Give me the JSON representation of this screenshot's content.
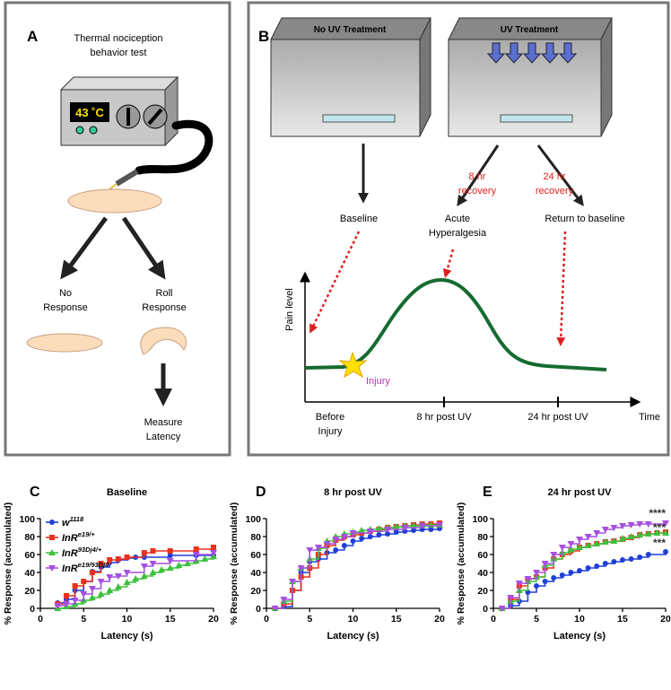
{
  "panel_a": {
    "label": "A",
    "title": [
      "Thermal nociception",
      "behavior test"
    ],
    "display": "43 ˚C",
    "left": [
      "No",
      "Response"
    ],
    "right": [
      "Roll",
      "Response"
    ],
    "bottom": [
      "Measure",
      "Latency"
    ]
  },
  "panel_b": {
    "label": "B",
    "box_left": "No UV Treatment",
    "box_right": "UV Treatment",
    "recovery_8": [
      "8 hr",
      "recovery"
    ],
    "recovery_24": [
      "24 hr",
      "recovery"
    ],
    "baseline": "Baseline",
    "acute": [
      "Acute",
      "Hyperalgesia"
    ],
    "return": "Return to baseline",
    "ylabel": "Pain level",
    "injury": "Injury",
    "xlabels": [
      [
        "Before",
        "Injury"
      ],
      [
        "8 hr post UV"
      ],
      [
        "24 hr post UV"
      ]
    ],
    "xaxis": "Time"
  },
  "chart_data": [
    {
      "type": "step",
      "label": "C",
      "title": "Baseline",
      "xlabel": "Latency (s)",
      "ylabel": "% Response (accumulated)",
      "xlim": [
        0,
        20
      ],
      "ylim": [
        0,
        100
      ],
      "xticks": [
        0,
        5,
        10,
        15,
        20
      ],
      "yticks": [
        0,
        20,
        40,
        60,
        80,
        100
      ],
      "legend": "upper left",
      "series": [
        {
          "name": "w",
          "superscript": "1118",
          "color": "#1f3fd8",
          "marker": "circle",
          "x": [
            2,
            3,
            4,
            5,
            6,
            7,
            8,
            9,
            10,
            11,
            12,
            15,
            18,
            20
          ],
          "values": [
            6,
            10,
            20,
            30,
            41,
            46,
            51,
            54,
            56,
            57,
            57,
            59,
            59,
            59
          ]
        },
        {
          "name": "InR",
          "superscript": "e19/+",
          "color": "#e8321e",
          "marker": "square",
          "x": [
            2,
            3,
            4,
            5,
            6,
            7,
            8,
            9,
            10,
            12,
            13,
            15,
            18,
            20
          ],
          "values": [
            5,
            14,
            25,
            30,
            40,
            50,
            54,
            55,
            57,
            62,
            64,
            64,
            66,
            68
          ]
        },
        {
          "name": "InR",
          "superscript": "93Dj4/+",
          "color": "#3cc13c",
          "marker": "triangle-up",
          "x": [
            2,
            3,
            4,
            5,
            6,
            7,
            8,
            9,
            10,
            11,
            12,
            13,
            14,
            15,
            16,
            17,
            18,
            19,
            20
          ],
          "values": [
            0,
            2,
            5,
            9,
            12,
            16,
            20,
            24,
            29,
            33,
            36,
            40,
            43,
            45,
            48,
            50,
            53,
            55,
            58
          ]
        },
        {
          "name": "InR",
          "superscript": "e19/93Dj4",
          "color": "#a64fe0",
          "marker": "triangle-down",
          "x": [
            2,
            3,
            4,
            5,
            6,
            7,
            8,
            9,
            10,
            12,
            13,
            15,
            18,
            20
          ],
          "values": [
            3,
            5,
            9,
            16,
            22,
            30,
            35,
            36,
            40,
            47,
            50,
            53,
            60,
            62
          ]
        }
      ]
    },
    {
      "type": "step",
      "label": "D",
      "title": "8 hr post UV",
      "xlabel": "Latency (s)",
      "ylabel": "% Response (accumulated)",
      "xlim": [
        0,
        20
      ],
      "ylim": [
        0,
        100
      ],
      "xticks": [
        0,
        5,
        10,
        15,
        20
      ],
      "yticks": [
        0,
        20,
        40,
        60,
        80,
        100
      ],
      "series": [
        {
          "color": "#1f3fd8",
          "marker": "circle",
          "x": [
            1,
            2,
            3,
            4,
            5,
            6,
            7,
            8,
            9,
            10,
            11,
            12,
            13,
            14,
            15,
            16,
            17,
            18,
            19,
            20
          ],
          "values": [
            0,
            2,
            20,
            40,
            52,
            55,
            62,
            65,
            70,
            75,
            78,
            80,
            82,
            83,
            85,
            86,
            87,
            88,
            88,
            89
          ]
        },
        {
          "color": "#e8321e",
          "marker": "square",
          "x": [
            1,
            2,
            3,
            4,
            5,
            6,
            7,
            8,
            9,
            10,
            11,
            12,
            13,
            14,
            15,
            16,
            17,
            18,
            19,
            20
          ],
          "values": [
            0,
            5,
            20,
            35,
            45,
            60,
            70,
            76,
            80,
            82,
            84,
            86,
            88,
            90,
            91,
            92,
            93,
            94,
            94,
            95
          ]
        },
        {
          "color": "#3cc13c",
          "marker": "triangle-up",
          "x": [
            1,
            2,
            3,
            4,
            5,
            6,
            7,
            8,
            9,
            10,
            11,
            12,
            13,
            14,
            15,
            16,
            17,
            18,
            19,
            20
          ],
          "values": [
            0,
            8,
            30,
            45,
            55,
            67,
            75,
            80,
            83,
            85,
            87,
            88,
            89,
            90,
            91,
            92,
            92,
            93,
            93,
            93
          ]
        },
        {
          "color": "#a64fe0",
          "marker": "triangle-down",
          "x": [
            1,
            2,
            3,
            4,
            5,
            6,
            7,
            8,
            9,
            10,
            12,
            14,
            16,
            18,
            20
          ],
          "values": [
            0,
            10,
            30,
            45,
            65,
            68,
            72,
            77,
            80,
            84,
            86,
            88,
            90,
            92,
            93
          ]
        }
      ]
    },
    {
      "type": "step",
      "label": "E",
      "title": "24 hr post UV",
      "xlabel": "Latency (s)",
      "ylabel": "% Response (accumulated)",
      "xlim": [
        0,
        20
      ],
      "ylim": [
        0,
        100
      ],
      "xticks": [
        0,
        5,
        10,
        15,
        20
      ],
      "yticks": [
        0,
        20,
        40,
        60,
        80,
        100
      ],
      "annotations": [
        "****",
        "***",
        "***"
      ],
      "series": [
        {
          "color": "#1f3fd8",
          "marker": "circle",
          "x": [
            1,
            2,
            3,
            4,
            5,
            6,
            7,
            8,
            9,
            10,
            11,
            12,
            13,
            14,
            15,
            16,
            17,
            18,
            20
          ],
          "values": [
            0,
            3,
            8,
            18,
            25,
            30,
            34,
            37,
            40,
            42,
            45,
            47,
            50,
            52,
            54,
            55,
            57,
            60,
            63
          ]
        },
        {
          "color": "#e8321e",
          "marker": "square",
          "x": [
            1,
            2,
            3,
            4,
            5,
            6,
            7,
            8,
            9,
            10,
            11,
            12,
            13,
            14,
            15,
            16,
            17,
            18,
            19,
            20
          ],
          "values": [
            0,
            10,
            25,
            33,
            35,
            45,
            55,
            60,
            64,
            68,
            70,
            72,
            74,
            75,
            77,
            79,
            82,
            83,
            84,
            85
          ]
        },
        {
          "color": "#3cc13c",
          "marker": "triangle-up",
          "x": [
            1,
            2,
            3,
            4,
            5,
            6,
            7,
            8,
            9,
            10,
            11,
            12,
            13,
            14,
            15,
            16,
            17,
            18,
            19,
            20
          ],
          "values": [
            0,
            8,
            20,
            30,
            35,
            48,
            55,
            62,
            66,
            68,
            70,
            72,
            74,
            75,
            78,
            80,
            82,
            83,
            84,
            84
          ]
        },
        {
          "color": "#a64fe0",
          "marker": "triangle-down",
          "x": [
            1,
            2,
            3,
            4,
            5,
            6,
            7,
            8,
            9,
            10,
            11,
            12,
            13,
            14,
            15,
            16,
            17,
            18,
            20
          ],
          "values": [
            0,
            12,
            28,
            33,
            40,
            50,
            60,
            68,
            72,
            77,
            80,
            84,
            88,
            90,
            92,
            93,
            94,
            94,
            95
          ]
        }
      ]
    }
  ]
}
